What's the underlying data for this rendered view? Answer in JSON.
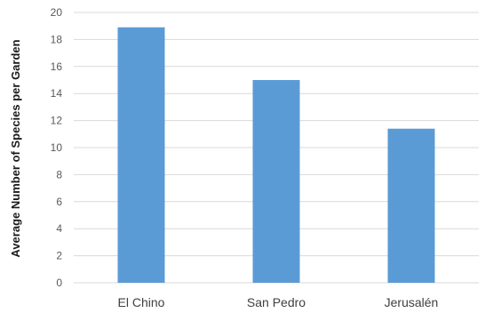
{
  "chart_data": {
    "type": "bar",
    "title": "",
    "xlabel": "",
    "ylabel": "Average Number of Species per Garden",
    "categories": [
      "El Chino",
      "San Pedro",
      "Jerusalén"
    ],
    "values": [
      18.9,
      15.0,
      11.4
    ],
    "ylim": [
      0,
      20
    ],
    "yticks": [
      0,
      2,
      4,
      6,
      8,
      10,
      12,
      14,
      16,
      18,
      20
    ],
    "grid": true,
    "legend": "none",
    "bar_color": "#5b9bd5",
    "grid_color": "#d9d9d9"
  }
}
